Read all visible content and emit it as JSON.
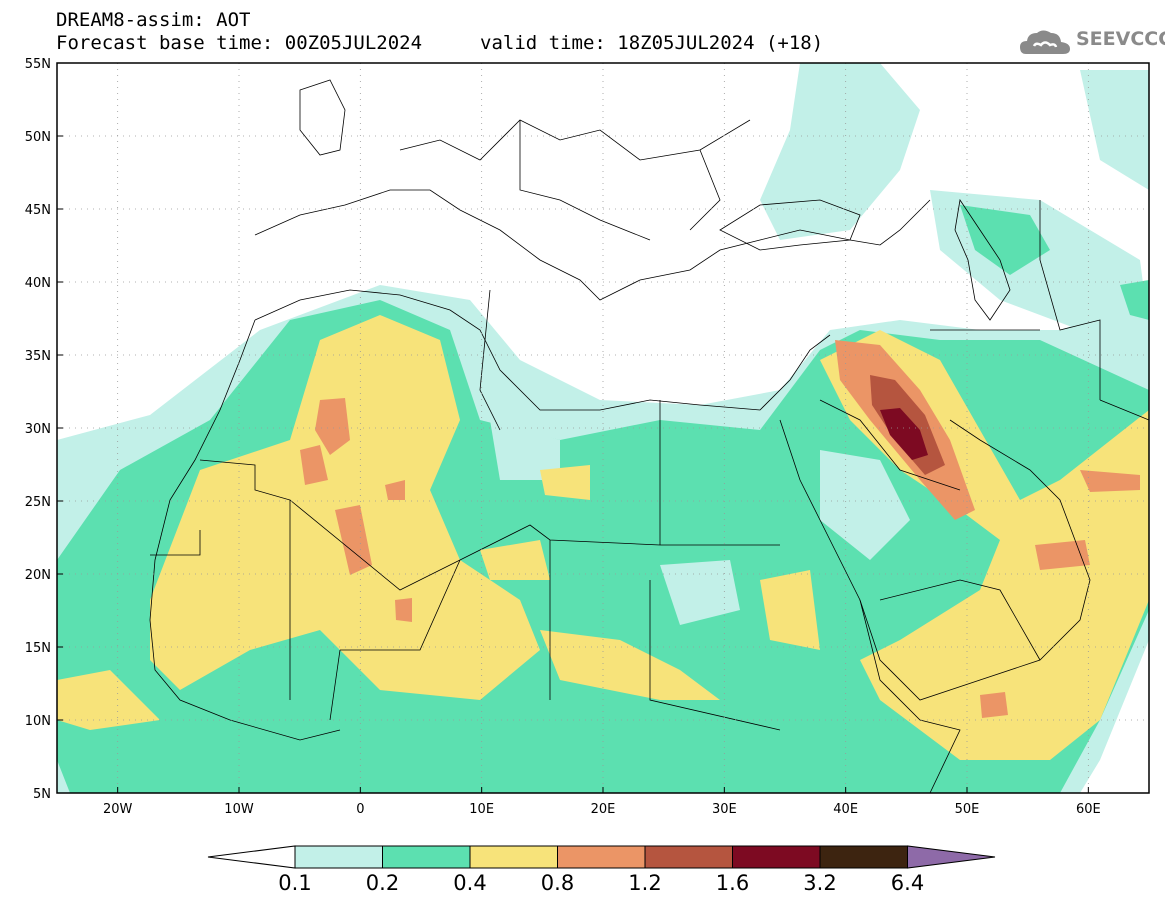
{
  "header": {
    "title": "DREAM8-assim: AOT",
    "base_time": "Forecast base time: 00Z05JUL2024",
    "valid_time": "valid time: 18Z05JUL2024 (+18)",
    "logo_text": "SEEVCCC",
    "logo_icon": "cloud-logo-icon"
  },
  "map": {
    "lon_range": [
      -25,
      65
    ],
    "lat_range": [
      5,
      55
    ],
    "lat_labels": [
      "55N",
      "50N",
      "45N",
      "40N",
      "35N",
      "30N",
      "25N",
      "20N",
      "15N",
      "10N",
      "5N"
    ],
    "lat_values": [
      55,
      50,
      45,
      40,
      35,
      30,
      25,
      20,
      15,
      10,
      5
    ],
    "lon_labels": [
      "20W",
      "10W",
      "0",
      "10E",
      "20E",
      "30E",
      "40E",
      "50E",
      "60E"
    ],
    "lon_values": [
      -20,
      -10,
      0,
      10,
      20,
      30,
      40,
      50,
      60
    ],
    "grid": true
  },
  "colorbar": {
    "levels": [
      "0.1",
      "0.2",
      "0.4",
      "0.8",
      "1.2",
      "1.6",
      "3.2",
      "6.4"
    ],
    "colors": [
      "#ffffff",
      "#c2f0e8",
      "#5ce0b0",
      "#f7e37a",
      "#eb9566",
      "#b5553f",
      "#7d0a22",
      "#3d2410",
      "#8e6aa8"
    ]
  }
}
